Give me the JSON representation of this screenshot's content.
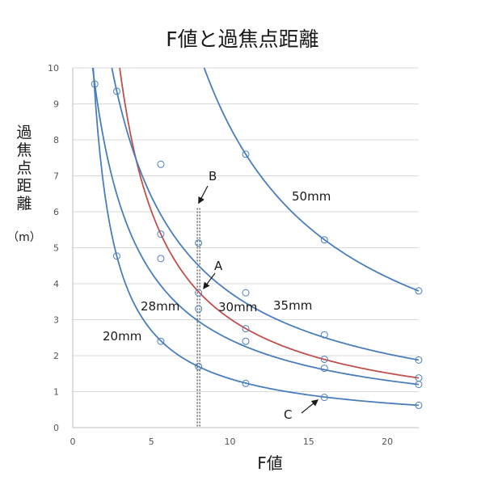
{
  "chart_data": {
    "type": "line",
    "title": "F値と過焦点距離",
    "xlabel": "F値",
    "ylabel_chars": [
      "過",
      "焦",
      "点",
      "距",
      "離"
    ],
    "ylabel_unit": "（m）",
    "xlim": [
      0,
      22
    ],
    "ylim": [
      0,
      10
    ],
    "xticks": [
      0,
      5,
      10,
      15,
      20
    ],
    "yticks": [
      0,
      1,
      2,
      3,
      4,
      5,
      6,
      7,
      8,
      9,
      10
    ],
    "grid": "horizontal",
    "legend": "inline",
    "f_stops": [
      1.4,
      2.8,
      5.6,
      8,
      11,
      16,
      22
    ],
    "series": [
      {
        "name": "20mm",
        "color": "#4a7ebb",
        "points": [
          [
            2.8,
            4.77
          ],
          [
            5.6,
            2.4
          ],
          [
            8,
            1.7
          ],
          [
            11,
            1.23
          ],
          [
            16,
            0.84
          ],
          [
            22,
            0.62
          ]
        ]
      },
      {
        "name": "28mm",
        "color": "#4a7ebb",
        "points": [
          [
            1.4,
            9.55
          ],
          [
            5.6,
            4.7
          ],
          [
            8,
            3.3
          ],
          [
            11,
            2.4
          ],
          [
            16,
            1.65
          ],
          [
            22,
            1.2
          ]
        ]
      },
      {
        "name": "30mm",
        "color": "#c0504d",
        "points": [
          [
            5.6,
            5.38
          ],
          [
            8,
            3.75
          ],
          [
            11,
            2.75
          ],
          [
            16,
            1.9
          ],
          [
            22,
            1.38
          ]
        ]
      },
      {
        "name": "35mm",
        "color": "#4a7ebb",
        "points": [
          [
            2.8,
            9.35
          ],
          [
            5.6,
            7.32
          ],
          [
            8,
            5.13
          ],
          [
            11,
            3.75
          ],
          [
            16,
            2.58
          ],
          [
            22,
            1.88
          ]
        ]
      },
      {
        "name": "50mm",
        "color": "#4a7ebb",
        "points": [
          [
            11,
            7.6
          ],
          [
            16,
            5.22
          ],
          [
            22,
            3.8
          ]
        ]
      }
    ],
    "vertical_marker": {
      "x": 8,
      "y_top": 6.1,
      "color": "#555555"
    },
    "annotations": [
      {
        "text": "A",
        "x": 8,
        "y": 3.75
      },
      {
        "text": "B",
        "x": 8,
        "y": 6.1
      },
      {
        "text": "C",
        "x": 16,
        "y": 0.84
      }
    ]
  }
}
